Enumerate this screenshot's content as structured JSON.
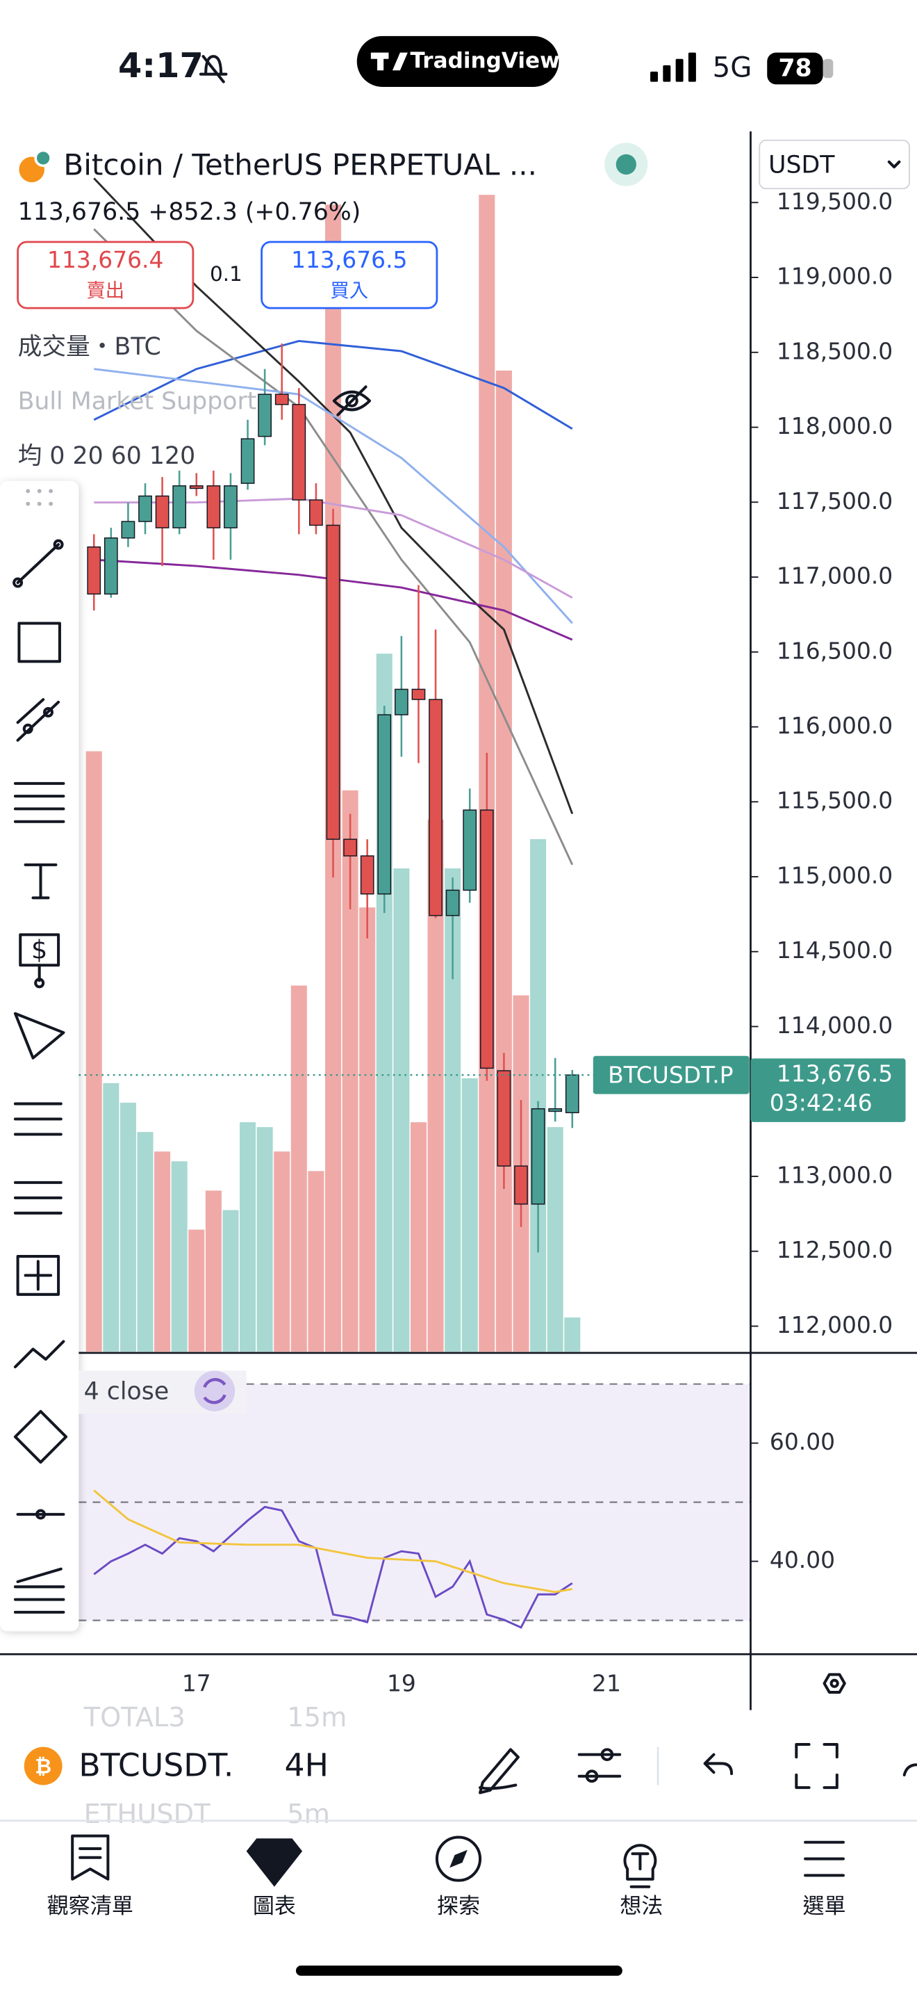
{
  "status_bar": {
    "time": "4:17",
    "brand": "TradingView",
    "network": "5G",
    "battery": "78"
  },
  "header": {
    "symbol_title": "Bitcoin / TetherUS PERPETUAL ...",
    "quote": "113,676.5 +852.3 (+0.76%)",
    "sell_price": "113,676.4",
    "sell_label": "賣出",
    "quantity": "0.1",
    "buy_price": "113,676.5",
    "buy_label": "買入",
    "volume_legend": "成交量・BTC",
    "indicator_legend": "Bull Market Support",
    "ma_legend": "均 0 20 60 120",
    "currency": "USDT"
  },
  "chart_data": [
    {
      "type": "candlestick",
      "x": [
        0,
        1,
        2,
        3,
        4,
        5,
        6,
        7,
        8,
        9,
        10,
        11,
        12,
        13,
        14,
        15,
        16,
        17,
        18,
        19,
        20,
        21,
        22,
        23,
        24,
        25,
        26,
        27,
        28
      ],
      "open": [
        117201,
        116887,
        117261,
        117371,
        117541,
        117329,
        117609,
        117609,
        117329,
        117626,
        117939,
        118220,
        118152,
        117515,
        117346,
        115250,
        115139,
        114885,
        116081,
        116251,
        116183,
        114741,
        114910,
        115445,
        113705,
        113069,
        112815,
        113434,
        113425
      ],
      "high": [
        117286,
        117329,
        117498,
        117626,
        117668,
        117711,
        117694,
        117711,
        117694,
        118050,
        118389,
        118559,
        118262,
        117626,
        117456,
        115420,
        115250,
        116141,
        116607,
        116947,
        116650,
        114995,
        115589,
        115827,
        113824,
        113510,
        113502,
        113790,
        113710
      ],
      "low": [
        116777,
        116862,
        117201,
        117286,
        117074,
        117286,
        117541,
        117116,
        117116,
        117583,
        117880,
        118050,
        117286,
        117286,
        114995,
        114783,
        114588,
        114758,
        115801,
        115759,
        114724,
        114316,
        114826,
        113638,
        112916,
        112662,
        112492,
        113366,
        113323
      ],
      "close": [
        116887,
        117261,
        117371,
        117541,
        117329,
        117609,
        117592,
        117329,
        117609,
        117923,
        118220,
        118152,
        117515,
        117346,
        115250,
        115139,
        114885,
        116081,
        116251,
        116183,
        114741,
        114910,
        115445,
        113722,
        113069,
        112815,
        113451,
        113451,
        113676.5
      ],
      "volume": [
        123,
        55,
        51,
        45,
        41,
        39,
        25,
        33,
        29,
        47,
        46,
        41,
        75,
        37,
        235,
        115,
        91,
        143,
        99,
        47,
        109,
        99,
        56,
        237,
        201,
        73,
        105,
        46,
        7
      ],
      "vlim": [
        0,
        250
      ],
      "up_color": "#4a9f94",
      "down_color": "#e0524f",
      "up_volume_color": "#a7d8d1",
      "down_volume_color": "#efaaa7",
      "lines": [
        {
          "color": "#2f5fd8",
          "x": [
            0,
            6,
            12,
            18,
            24,
            28
          ],
          "values": [
            118050,
            118389,
            118576,
            118508,
            118262,
            117990
          ]
        },
        {
          "color": "#2b2b2b",
          "x": [
            0,
            6,
            12,
            15,
            18,
            22,
            24,
            28
          ],
          "values": [
            119662,
            118941,
            118305,
            117965,
            117329,
            116862,
            116650,
            115420
          ]
        },
        {
          "color": "#8c8c8c",
          "x": [
            0,
            6,
            12,
            18,
            22,
            28
          ],
          "values": [
            119323,
            118644,
            118135,
            117116,
            116565,
            115080
          ]
        },
        {
          "color": "#8fb0ee",
          "x": [
            0,
            6,
            12,
            18,
            24,
            28
          ],
          "values": [
            118389,
            118305,
            118220,
            117795,
            117201,
            116692
          ]
        },
        {
          "color": "#c99bd8",
          "x": [
            0,
            6,
            12,
            18,
            24,
            28
          ],
          "values": [
            117498,
            117498,
            117524,
            117413,
            117116,
            116862
          ]
        },
        {
          "color": "#86279a",
          "x": [
            0,
            6,
            12,
            18,
            24,
            28
          ],
          "values": [
            117116,
            117074,
            117015,
            116930,
            116777,
            116582
          ]
        }
      ],
      "xlim": [
        -5.5,
        38.44
      ],
      "xticks": [
        {
          "value": 6,
          "label": "17"
        },
        {
          "value": 18,
          "label": "19"
        },
        {
          "value": 30,
          "label": "21"
        }
      ],
      "ylim": [
        111830,
        119975
      ],
      "yticks": [
        {
          "value": 112000,
          "label": "112,000.0"
        },
        {
          "value": 112500,
          "label": "112,500.0"
        },
        {
          "value": 113000,
          "label": "113,000.0"
        },
        {
          "value": 114000,
          "label": "114,000.0"
        },
        {
          "value": 114500,
          "label": "114,500.0"
        },
        {
          "value": 115000,
          "label": "115,000.0"
        },
        {
          "value": 115500,
          "label": "115,500.0"
        },
        {
          "value": 116000,
          "label": "116,000.0"
        },
        {
          "value": 116500,
          "label": "116,500.0"
        },
        {
          "value": 117000,
          "label": "117,000.0"
        },
        {
          "value": 117500,
          "label": "117,500.0"
        },
        {
          "value": 118000,
          "label": "118,000.0"
        },
        {
          "value": 118500,
          "label": "118,500.0"
        },
        {
          "value": 119000,
          "label": "119,000.0"
        },
        {
          "value": 119500,
          "label": "119,500.0"
        }
      ],
      "last_price": {
        "value": 113676.5,
        "label": "113,676.5"
      },
      "symbol_tag": "BTCUSDT.P",
      "countdown": "03:42:46",
      "price_color": "#3d9a8b"
    },
    {
      "type": "line",
      "label": "4 close",
      "series": [
        {
          "color": "#6a4bc4",
          "x": [
            0,
            1,
            2,
            3,
            4,
            5,
            6,
            7,
            8,
            9,
            10,
            11,
            12,
            13,
            14,
            15,
            16,
            17,
            18,
            19,
            20,
            21,
            22,
            23,
            24,
            25,
            26,
            27,
            28
          ],
          "values": [
            37.8,
            40.0,
            41.3,
            42.8,
            41.3,
            43.9,
            43.4,
            41.7,
            44.3,
            46.9,
            49.2,
            48.6,
            43.4,
            42.2,
            31.0,
            30.5,
            29.7,
            40.6,
            41.7,
            41.3,
            34.0,
            35.7,
            40.0,
            31.0,
            30.1,
            28.8,
            34.4,
            34.4,
            36.3
          ]
        },
        {
          "color": "#f2c53d",
          "x": [
            0,
            2,
            5,
            9,
            12,
            16,
            20,
            24,
            27,
            28
          ],
          "values": [
            52,
            47.1,
            43.2,
            42.8,
            42.8,
            40.6,
            40.0,
            36.3,
            34.8,
            35.3
          ]
        }
      ],
      "levels": [
        70,
        50,
        30
      ],
      "band_color": "#7e57c2",
      "xlim": [
        -5.5,
        38.44
      ],
      "ylim": [
        24.5,
        75.05
      ],
      "yticks": [
        {
          "value": 60,
          "label": "60.00"
        },
        {
          "value": 40,
          "label": "40.00"
        }
      ]
    }
  ],
  "toolbar": {
    "symbol": "BTCUSDT.",
    "interval": "4H",
    "recent_symbol_1": "TOTAL3",
    "recent_interval_1": "15m",
    "recent_symbol_2": "ETHUSDT",
    "recent_interval_2": "5m"
  },
  "tabs": [
    "觀察清單",
    "圖表",
    "探索",
    "想法",
    "選單"
  ]
}
